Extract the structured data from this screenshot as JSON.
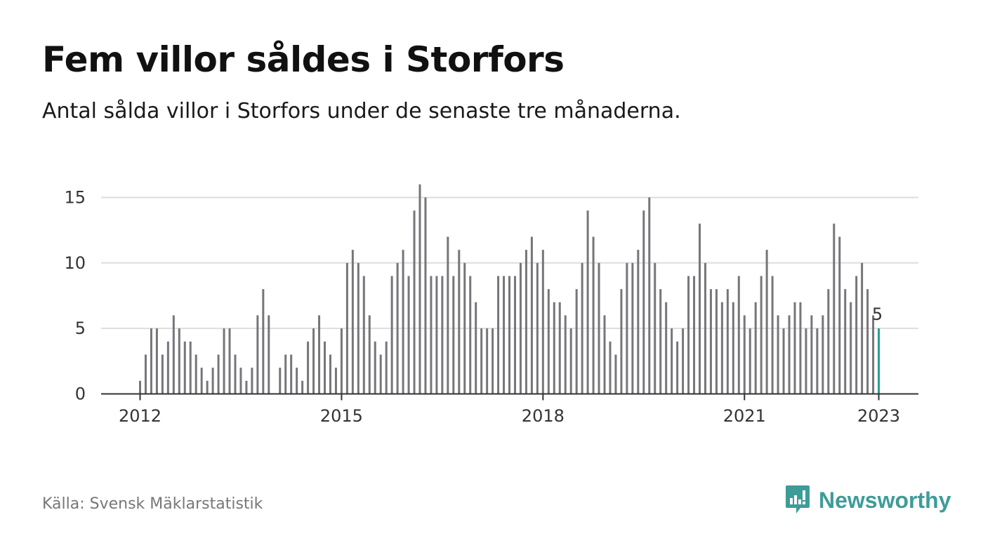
{
  "title": "Fem villor såldes i Storfors",
  "subtitle": "Antal sålda villor i Storfors under de senaste tre månaderna.",
  "source": "Källa: Svensk Mäklarstatistik",
  "brand": {
    "name": "Newsworthy"
  },
  "colors": {
    "bar": "#76767a",
    "highlight": "#2a9d8f",
    "grid": "#dddddd",
    "axis": "#333333",
    "brand": "#3e9c98"
  },
  "chart_data": {
    "type": "bar",
    "title": "Fem villor såldes i Storfors",
    "subtitle": "Antal sålda villor i Storfors under de senaste tre månaderna.",
    "x_start": "2012-01",
    "x_interval": "month",
    "values": [
      1,
      3,
      5,
      5,
      3,
      4,
      6,
      5,
      4,
      4,
      3,
      2,
      1,
      2,
      3,
      5,
      5,
      3,
      2,
      1,
      2,
      6,
      8,
      6,
      0,
      2,
      3,
      3,
      2,
      1,
      4,
      5,
      6,
      4,
      3,
      2,
      5,
      10,
      11,
      10,
      9,
      6,
      4,
      3,
      4,
      9,
      10,
      11,
      9,
      14,
      16,
      15,
      9,
      9,
      9,
      12,
      9,
      11,
      10,
      9,
      7,
      5,
      5,
      5,
      9,
      9,
      9,
      9,
      10,
      11,
      12,
      10,
      11,
      8,
      7,
      7,
      6,
      5,
      8,
      10,
      14,
      12,
      10,
      6,
      4,
      3,
      8,
      10,
      10,
      11,
      14,
      15,
      10,
      8,
      7,
      5,
      4,
      5,
      9,
      9,
      13,
      10,
      8,
      8,
      7,
      8,
      7,
      9,
      6,
      5,
      7,
      9,
      11,
      9,
      6,
      5,
      6,
      7,
      7,
      5,
      6,
      5,
      6,
      8,
      13,
      12,
      8,
      7,
      9,
      10,
      8,
      6,
      5
    ],
    "highlight_last": true,
    "last_label": "5",
    "ylim": [
      0,
      16
    ],
    "yticks": [
      0,
      5,
      10,
      15
    ],
    "xticks": [
      {
        "label": "2012",
        "index": 0
      },
      {
        "label": "2015",
        "index": 36
      },
      {
        "label": "2018",
        "index": 72
      },
      {
        "label": "2021",
        "index": 108
      },
      {
        "label": "2023",
        "index": 132
      }
    ],
    "grid": true
  }
}
